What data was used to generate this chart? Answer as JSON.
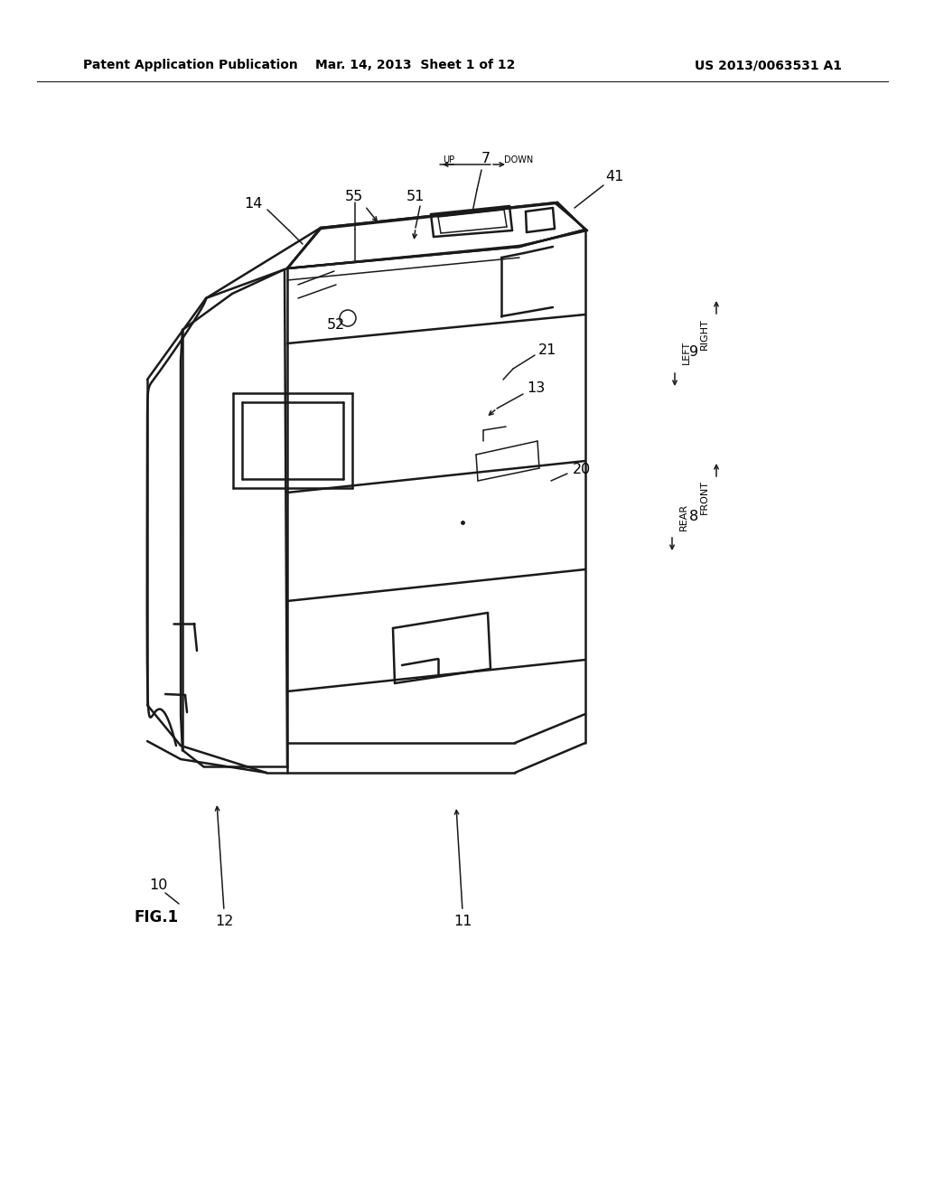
{
  "header_left": "Patent Application Publication",
  "header_mid": "Mar. 14, 2013  Sheet 1 of 12",
  "header_right": "US 2013/0063531 A1",
  "fig_label": "FIG.1",
  "background_color": "#ffffff",
  "line_color": "#1a1a1a",
  "text_color": "#000000"
}
